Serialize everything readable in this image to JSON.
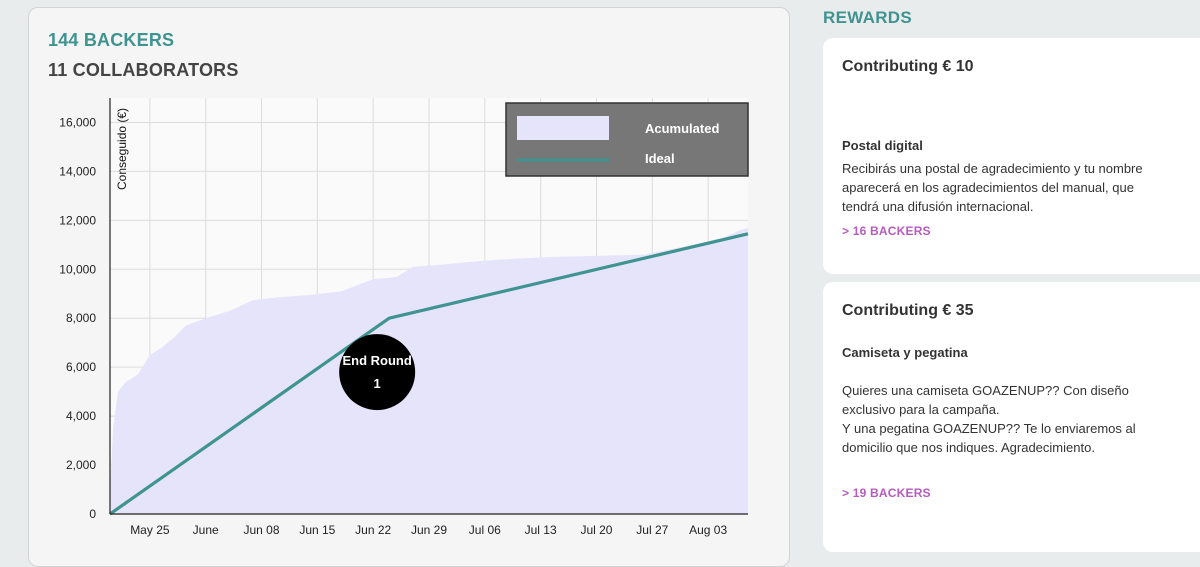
{
  "summary": {
    "backers": "144 BACKERS",
    "collaborators": "11 COLLABORATORS"
  },
  "chart_data": {
    "type": "area",
    "ylabel": "Conseguido (€)",
    "ylim": [
      0,
      17000
    ],
    "yticks": [
      0,
      2000,
      4000,
      6000,
      8000,
      10000,
      12000,
      14000,
      16000
    ],
    "ytick_labels": [
      "0",
      "2,000",
      "4,000",
      "6,000",
      "8,000",
      "10,000",
      "12,000",
      "14,000",
      "16,000"
    ],
    "xtick_labels": [
      "May 25",
      "June",
      "Jun 08",
      "Jun 15",
      "Jun 22",
      "Jun 29",
      "Jul 06",
      "Jul 13",
      "Jul 20",
      "Jul 27",
      "Aug 03"
    ],
    "xlim_days": [
      -5,
      75
    ],
    "legend": {
      "position": "top-right",
      "accumulated": "Acumulated",
      "ideal": "Ideal"
    },
    "series": [
      {
        "name": "Acumulated",
        "x_days": [
          -5,
          -4.6,
          -4,
          -3,
          -1.5,
          0,
          1.5,
          3,
          4.5,
          7,
          10,
          13,
          16,
          20,
          24,
          28,
          30,
          31,
          33,
          35,
          37,
          40,
          44,
          50,
          56,
          62,
          68,
          72,
          74,
          75
        ],
        "values": [
          1000,
          3500,
          5000,
          5400,
          5700,
          6500,
          6800,
          7200,
          7700,
          8000,
          8300,
          8750,
          8850,
          8950,
          9100,
          9600,
          9650,
          9700,
          10100,
          10150,
          10200,
          10300,
          10400,
          10500,
          10550,
          10600,
          11000,
          11300,
          11600,
          11700
        ],
        "color": "#e6e4fb"
      },
      {
        "name": "Ideal",
        "x_days": [
          -5,
          30,
          75
        ],
        "values": [
          0,
          8000,
          11450
        ],
        "color": "#3f9390"
      }
    ],
    "annotation": {
      "text_line1": "End Round",
      "text_line2": "1",
      "x_days": 28.5,
      "y": 5800
    }
  },
  "rewards": {
    "heading": "REWARDS",
    "items": [
      {
        "title": "Contributing € 10",
        "name": "Postal digital",
        "description": "Recibirás una postal de agradecimiento y tu nombre aparecerá en los agradecimientos del manual, que tendrá una difusión internacional.",
        "backers": "> 16 BACKERS"
      },
      {
        "title": "Contributing € 35",
        "name": "Camiseta y pegatina",
        "description": "Quieres una camiseta GOAZENUP?? Con diseño exclusivo para la campaña.\nY una pegatina GOAZENUP?? Te lo enviaremos al domicilio que nos indiques. Agradecimiento.",
        "backers": "> 19 BACKERS"
      }
    ]
  },
  "colors": {
    "accent": "#3f9390",
    "link": "#b75bbd",
    "area_fill": "#e6e4fb",
    "legend_bg": "#777777"
  }
}
